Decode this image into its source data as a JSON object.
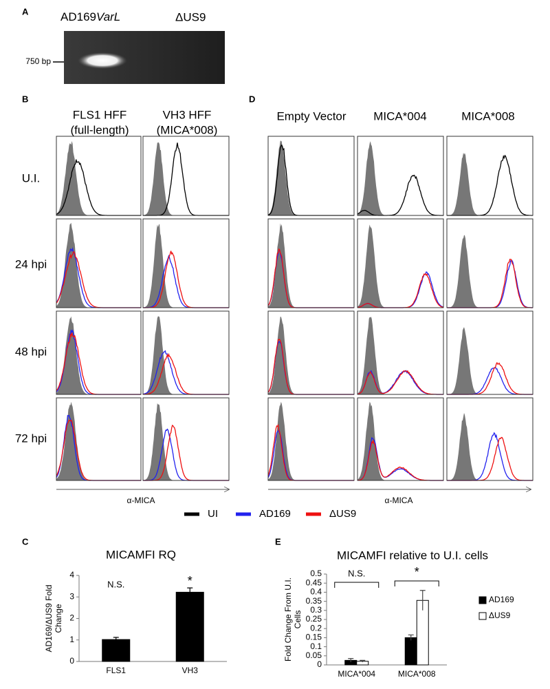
{
  "panels": {
    "a": {
      "label": "A",
      "lane1": "AD169",
      "lane1_italic": "VarL",
      "lane2": "ΔUS9",
      "marker": "750 bp"
    },
    "b": {
      "label": "B",
      "columns": [
        [
          "FLS1 HFF",
          "(full-length)"
        ],
        [
          "VH3 HFF",
          "(MICA*008)"
        ]
      ],
      "rows": [
        "U.I.",
        "24 hpi",
        "48 hpi",
        "72 hpi"
      ],
      "xlabel": "α-MICA"
    },
    "d": {
      "label": "D",
      "columns": [
        "Empty Vector",
        "MICA*004",
        "MICA*008"
      ],
      "xlabel": "α-MICA"
    },
    "legend": [
      {
        "name": "UI",
        "color": "#000000"
      },
      {
        "name": "AD169",
        "color": "#2222ee"
      },
      {
        "name": "ΔUS9",
        "color": "#ee1111"
      }
    ],
    "c": {
      "label": "C"
    },
    "e": {
      "label": "E"
    }
  },
  "chart_data": [
    {
      "type": "bar",
      "title": "MICAMFI RQ",
      "ylabel": [
        "AD169/ΔUS9 Fold",
        "Change"
      ],
      "categories": [
        "FLS1",
        "VH3"
      ],
      "values": [
        1.02,
        3.22
      ],
      "errors": [
        0.1,
        0.2
      ],
      "color": "#000000",
      "ylim": [
        0,
        4
      ],
      "yticks": [
        0,
        1,
        2,
        3,
        4
      ],
      "annotations": [
        "N.S.",
        "*"
      ]
    },
    {
      "type": "bar",
      "title": "MICAMFI relative to U.I. cells",
      "ylabel": [
        "Fold Change From U.I.",
        "Cells"
      ],
      "categories": [
        "MICA*004",
        "MICA*008"
      ],
      "series": [
        {
          "name": "AD169",
          "color": "#000000",
          "values": [
            0.025,
            0.15
          ],
          "errors": [
            0.01,
            0.015
          ]
        },
        {
          "name": "ΔUS9",
          "color": "#ffffff",
          "values": [
            0.02,
            0.355
          ],
          "errors": [
            0.005,
            0.055
          ]
        }
      ],
      "ylim": [
        0,
        0.5
      ],
      "yticks": [
        0,
        0.05,
        0.1,
        0.15,
        0.2,
        0.25,
        0.3,
        0.35,
        0.4,
        0.45,
        0.5
      ],
      "annotations": [
        "N.S.",
        "*"
      ],
      "legend": "right"
    }
  ]
}
